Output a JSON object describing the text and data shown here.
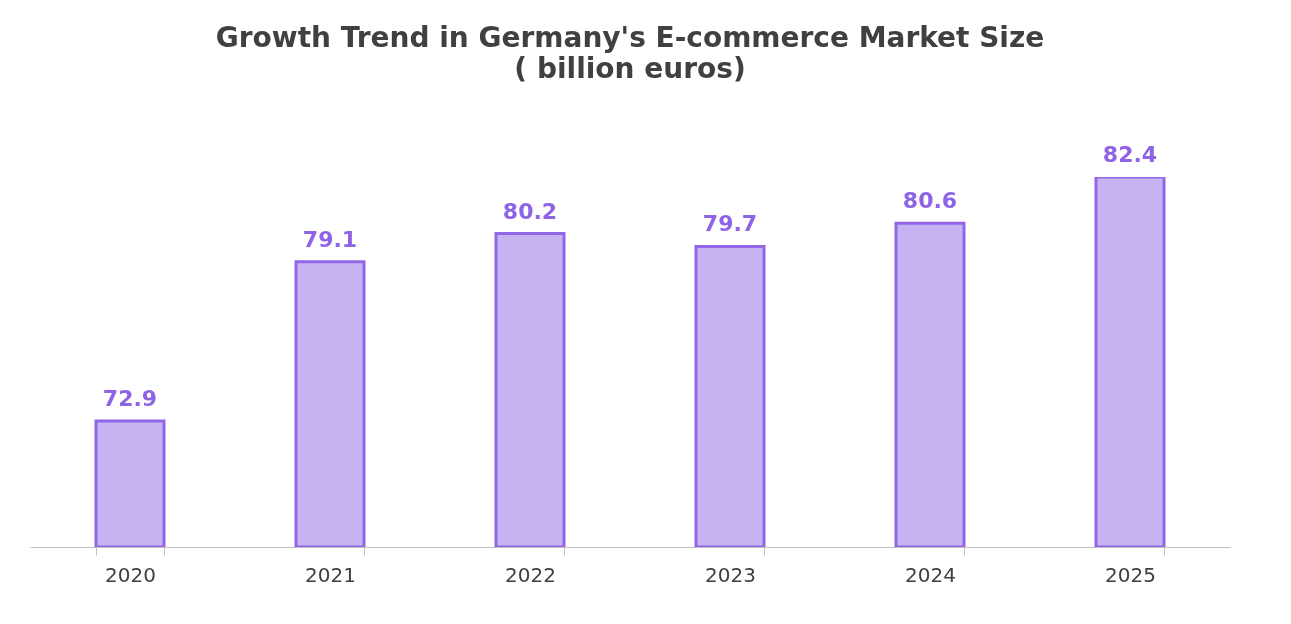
{
  "chart_data": {
    "type": "bar",
    "title": "Growth Trend in Germany's E-commerce Market Size",
    "subtitle": "( billion euros)",
    "categories": [
      "2020",
      "2021",
      "2022",
      "2023",
      "2024",
      "2025"
    ],
    "series": [
      {
        "color": "#c6b4f2",
        "values": [
          72.9,
          79.1,
          80.2,
          79.7,
          80.6,
          82.4
        ]
      }
    ],
    "ylim": [
      68,
      82.4
    ],
    "data_labels": true,
    "tick_labels": "x"
  }
}
